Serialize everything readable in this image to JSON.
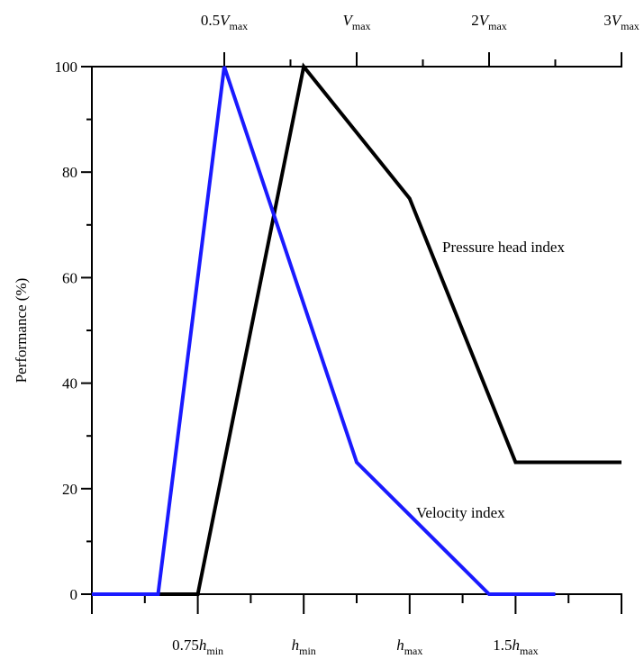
{
  "chart_data": {
    "type": "line",
    "ylabel": "Performance (%)",
    "ylim": [
      0,
      100
    ],
    "yticks": [
      "0",
      "20",
      "40",
      "60",
      "80",
      "100"
    ],
    "bottom_axis": {
      "ticks": [
        {
          "pre": "0.75",
          "var": "h",
          "sub": "min",
          "x": 2
        },
        {
          "pre": "",
          "var": "h",
          "sub": "min",
          "x": 4
        },
        {
          "pre": "",
          "var": "h",
          "sub": "max",
          "x": 6
        },
        {
          "pre": "1.5",
          "var": "h",
          "sub": "max",
          "x": 8
        }
      ]
    },
    "top_axis": {
      "ticks": [
        {
          "pre": "0.5",
          "var": "V",
          "sub": "max",
          "x": 2.5
        },
        {
          "pre": "",
          "var": "V",
          "sub": "max",
          "x": 5
        },
        {
          "pre": "2",
          "var": "V",
          "sub": "max",
          "x": 7.5
        },
        {
          "pre": "3",
          "var": "V",
          "sub": "max",
          "x": 10
        }
      ]
    },
    "series": [
      {
        "name": "Pressure head index",
        "color": "#000000",
        "points": [
          [
            0,
            0
          ],
          [
            2,
            0
          ],
          [
            4,
            100
          ],
          [
            6,
            75
          ],
          [
            8,
            25
          ],
          [
            10,
            25
          ]
        ]
      },
      {
        "name": "Velocity index",
        "color": "#1a1aff",
        "points": [
          [
            0,
            0
          ],
          [
            1.25,
            0
          ],
          [
            2.5,
            100
          ],
          [
            5,
            25
          ],
          [
            7.5,
            0
          ],
          [
            8.75,
            0
          ]
        ]
      }
    ],
    "grid": false,
    "legend": "inline labels"
  }
}
